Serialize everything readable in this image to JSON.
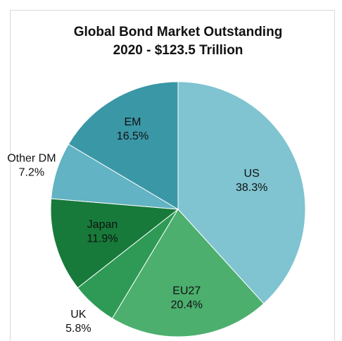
{
  "chart_data": {
    "type": "pie",
    "title": "Global Bond Market Outstanding",
    "subtitle": "2020 - $123.5 Trillion",
    "categories": [
      "US",
      "EU27",
      "UK",
      "Japan",
      "Other DM",
      "EM"
    ],
    "values": [
      38.3,
      20.4,
      5.8,
      11.9,
      7.2,
      16.5
    ],
    "value_labels": [
      "38.3%",
      "20.4%",
      "5.8%",
      "11.9%",
      "7.2%",
      "16.5%"
    ],
    "colors": [
      "#7fc4d0",
      "#4caf6e",
      "#2e9a55",
      "#177a3a",
      "#62b3c3",
      "#3a97a6"
    ]
  }
}
